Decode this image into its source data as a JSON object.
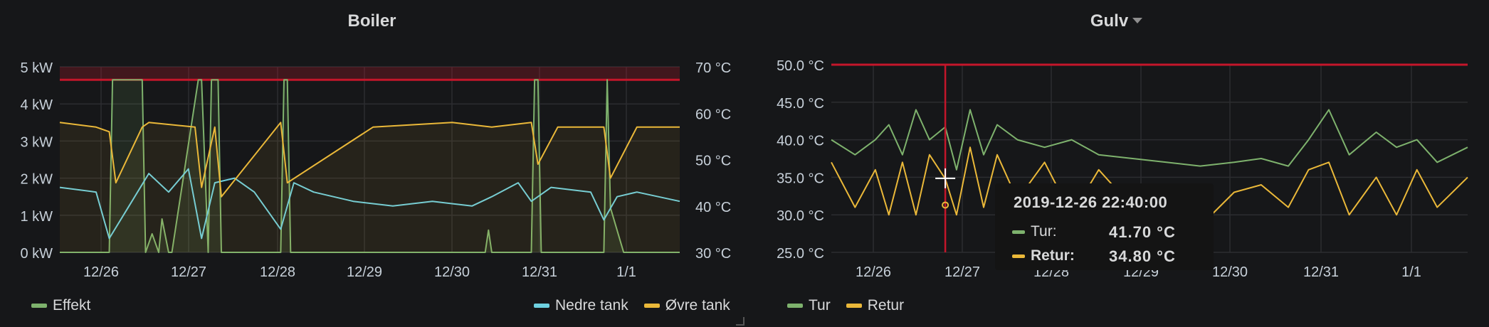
{
  "panels": {
    "boiler": {
      "title": "Boiler",
      "legend": [
        {
          "name": "Effekt",
          "color": "#7eb26d"
        },
        {
          "name": "Nedre tank",
          "color": "#6ed0e0"
        },
        {
          "name": "Øvre tank",
          "color": "#eab839"
        }
      ]
    },
    "gulv": {
      "title": "Gulv",
      "legend": [
        {
          "name": "Tur",
          "color": "#7eb26d"
        },
        {
          "name": "Retur",
          "color": "#eab839"
        }
      ]
    }
  },
  "tooltip": {
    "time": "2019-12-26 22:40:00",
    "rows": [
      {
        "label": "Tur:",
        "value": "41.70 °C",
        "color": "#7eb26d",
        "bold": false
      },
      {
        "label": "Retur:",
        "value": "34.80 °C",
        "color": "#eab839",
        "bold": true
      }
    ]
  },
  "chart_data": [
    {
      "type": "line",
      "title": "Boiler",
      "x_range": [
        "2019-12-25 13:00",
        "2020-01-02 09:00"
      ],
      "x_ticks": [
        "12/26",
        "12/27",
        "12/28",
        "12/29",
        "12/30",
        "12/31",
        "1/1"
      ],
      "y_left": {
        "ticks": [
          "0 kW",
          "1 kW",
          "2 kW",
          "3 kW",
          "4 kW",
          "5 kW"
        ],
        "range": [
          0,
          5
        ]
      },
      "y_right": {
        "ticks": [
          "30 °C",
          "40 °C",
          "50 °C",
          "60 °C",
          "70 °C"
        ],
        "range": [
          30,
          70
        ]
      },
      "threshold": {
        "axis": "left",
        "value": 4.65,
        "color": "#c4162a"
      },
      "grid": true,
      "legend_placement": "bottom",
      "series": [
        {
          "name": "Effekt",
          "axis": "left",
          "color": "#7eb26d",
          "fill": true,
          "x": [
            "2019-12-25 13:00",
            "2019-12-26 04:00",
            "2019-12-26 05:00",
            "2019-12-26 14:00",
            "2019-12-26 15:00",
            "2019-12-26 17:00",
            "2019-12-26 19:00",
            "2019-12-26 20:00",
            "2019-12-26 22:00",
            "2019-12-26 23:00",
            "2019-12-27 07:00",
            "2019-12-27 08:00",
            "2019-12-27 10:00",
            "2019-12-27 11:00",
            "2019-12-27 13:00",
            "2019-12-27 14:00",
            "2019-12-28 08:00",
            "2019-12-28 09:00",
            "2019-12-28 10:00",
            "2019-12-28 11:00",
            "2019-12-30 22:00",
            "2019-12-30 23:00",
            "2019-12-31 00:00",
            "2019-12-31 12:00",
            "2019-12-31 13:00",
            "2019-12-31 14:00",
            "2019-12-31 15:00",
            "2020-01-01 10:00",
            "2020-01-01 11:00",
            "2020-01-01 12:00",
            "2020-01-01 16:00",
            "2020-01-02 09:00"
          ],
          "y": [
            0,
            0,
            4.65,
            4.65,
            0,
            0.5,
            0,
            0.9,
            0,
            0,
            4.65,
            4.65,
            0,
            4.65,
            4.65,
            0,
            0,
            4.65,
            4.65,
            0,
            0,
            0.6,
            0,
            0,
            4.65,
            4.65,
            0,
            0,
            4.65,
            1.2,
            0,
            0
          ]
        },
        {
          "name": "Nedre tank",
          "axis": "right",
          "color": "#6ed0e0",
          "x": [
            "2019-12-25 13:00",
            "2019-12-26 00:00",
            "2019-12-26 04:00",
            "2019-12-26 10:00",
            "2019-12-26 16:00",
            "2019-12-26 22:00",
            "2019-12-27 04:00",
            "2019-12-27 08:00",
            "2019-12-27 12:00",
            "2019-12-27 18:00",
            "2019-12-28 00:00",
            "2019-12-28 08:00",
            "2019-12-28 12:00",
            "2019-12-28 18:00",
            "2019-12-29 06:00",
            "2019-12-29 18:00",
            "2019-12-30 06:00",
            "2019-12-30 18:00",
            "2019-12-31 00:00",
            "2019-12-31 08:00",
            "2019-12-31 12:00",
            "2019-12-31 18:00",
            "2020-01-01 06:00",
            "2020-01-01 10:00",
            "2020-01-01 14:00",
            "2020-01-01 20:00",
            "2020-01-02 09:00"
          ],
          "y": [
            44,
            43,
            33,
            40,
            47,
            43,
            48,
            33,
            45,
            46,
            43,
            35,
            45,
            43,
            41,
            40,
            41,
            40,
            42,
            45,
            41,
            44,
            43,
            37,
            42,
            43,
            41
          ]
        },
        {
          "name": "Øvre tank",
          "axis": "right",
          "color": "#eab839",
          "x": [
            "2019-12-25 13:00",
            "2019-12-26 00:00",
            "2019-12-26 04:00",
            "2019-12-26 06:00",
            "2019-12-26 14:00",
            "2019-12-26 16:00",
            "2019-12-27 06:00",
            "2019-12-27 08:00",
            "2019-12-27 12:00",
            "2019-12-27 14:00",
            "2019-12-28 08:00",
            "2019-12-28 10:00",
            "2019-12-29 12:00",
            "2019-12-30 12:00",
            "2019-12-31 00:00",
            "2019-12-31 12:00",
            "2019-12-31 14:00",
            "2019-12-31 20:00",
            "2020-01-01 10:00",
            "2020-01-01 12:00",
            "2020-01-01 20:00",
            "2020-01-02 09:00"
          ],
          "y": [
            58,
            57,
            56,
            45,
            57,
            58,
            57,
            44,
            57,
            42,
            58,
            45,
            57,
            58,
            57,
            58,
            49,
            57,
            57,
            46,
            57,
            57
          ]
        }
      ]
    },
    {
      "type": "line",
      "title": "Gulv",
      "x_range": [
        "2019-12-25 13:00",
        "2020-01-02 09:00"
      ],
      "x_ticks": [
        "12/26",
        "12/27",
        "12/28",
        "12/29",
        "12/30",
        "12/31",
        "1/1"
      ],
      "y": {
        "ticks": [
          "25.0 °C",
          "30.0 °C",
          "35.0 °C",
          "40.0 °C",
          "45.0 °C",
          "50.0 °C"
        ],
        "range": [
          25,
          50
        ]
      },
      "threshold": {
        "value": 50,
        "color": "#c4162a"
      },
      "crosshair_x": "2019-12-26 22:40",
      "grid": true,
      "legend_placement": "bottom",
      "series": [
        {
          "name": "Tur",
          "color": "#7eb26d",
          "x": [
            "2019-12-25 13:00",
            "2019-12-25 20:00",
            "2019-12-26 02:00",
            "2019-12-26 06:00",
            "2019-12-26 10:00",
            "2019-12-26 14:00",
            "2019-12-26 18:00",
            "2019-12-26 22:40",
            "2019-12-27 02:00",
            "2019-12-27 06:00",
            "2019-12-27 10:00",
            "2019-12-27 14:00",
            "2019-12-27 20:00",
            "2019-12-28 04:00",
            "2019-12-28 12:00",
            "2019-12-28 20:00",
            "2019-12-29 06:00",
            "2019-12-29 16:00",
            "2019-12-30 02:00",
            "2019-12-30 12:00",
            "2019-12-30 20:00",
            "2019-12-31 04:00",
            "2019-12-31 10:00",
            "2019-12-31 16:00",
            "2019-12-31 22:00",
            "2020-01-01 06:00",
            "2020-01-01 12:00",
            "2020-01-01 18:00",
            "2020-01-02 00:00",
            "2020-01-02 09:00"
          ],
          "y": [
            40,
            38,
            40,
            42,
            38,
            44,
            40,
            41.7,
            36,
            44,
            38,
            42,
            40,
            39,
            40,
            38,
            37.5,
            37,
            36.5,
            37,
            37.5,
            36.5,
            40,
            44,
            38,
            41,
            39,
            40,
            37,
            39
          ]
        },
        {
          "name": "Retur",
          "color": "#eab839",
          "x": [
            "2019-12-25 13:00",
            "2019-12-25 20:00",
            "2019-12-26 02:00",
            "2019-12-26 06:00",
            "2019-12-26 10:00",
            "2019-12-26 14:00",
            "2019-12-26 18:00",
            "2019-12-26 22:40",
            "2019-12-27 02:00",
            "2019-12-27 06:00",
            "2019-12-27 10:00",
            "2019-12-27 14:00",
            "2019-12-27 20:00",
            "2019-12-28 04:00",
            "2019-12-28 12:00",
            "2019-12-28 20:00",
            "2019-12-29 06:00",
            "2019-12-29 16:00",
            "2019-12-30 02:00",
            "2019-12-30 12:00",
            "2019-12-30 20:00",
            "2019-12-31 04:00",
            "2019-12-31 10:00",
            "2019-12-31 16:00",
            "2019-12-31 22:00",
            "2020-01-01 06:00",
            "2020-01-01 12:00",
            "2020-01-01 18:00",
            "2020-01-02 00:00",
            "2020-01-02 09:00"
          ],
          "y": [
            37,
            31,
            36,
            30,
            37,
            30,
            38,
            34.8,
            30,
            39,
            31,
            38,
            32,
            37,
            30,
            36,
            31,
            30,
            28.5,
            33,
            34,
            31,
            36,
            37,
            30,
            35,
            30,
            36,
            31,
            35
          ]
        }
      ]
    }
  ]
}
